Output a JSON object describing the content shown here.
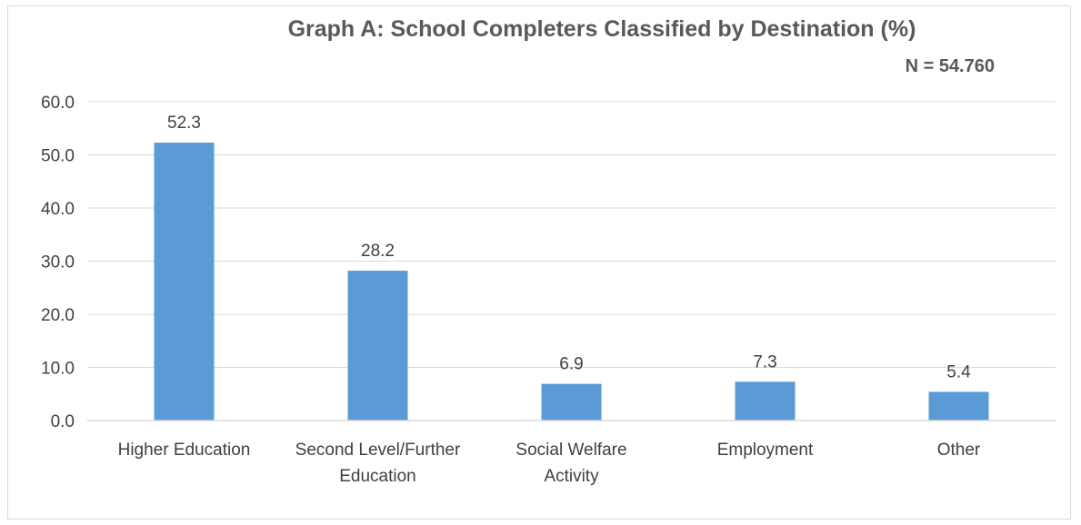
{
  "chart_data": {
    "type": "bar",
    "title": "Graph A: School Completers Classified by Destination  (%)",
    "subtitle": "N = 54.760",
    "categories": [
      [
        "Higher Education"
      ],
      [
        "Second Level/Further",
        "Education"
      ],
      [
        "Social Welfare",
        "Activity"
      ],
      [
        "Employment"
      ],
      [
        "Other"
      ]
    ],
    "values": [
      52.3,
      28.2,
      6.9,
      7.3,
      5.4
    ],
    "value_labels": [
      "52.3",
      "28.2",
      "6.9",
      "7.3",
      "5.4"
    ],
    "yticks": [
      0,
      10,
      20,
      30,
      40,
      50,
      60
    ],
    "ytick_labels": [
      "0.0",
      "10.0",
      "20.0",
      "30.0",
      "40.0",
      "50.0",
      "60.0"
    ],
    "ylim": [
      0,
      60
    ],
    "xlabel": "",
    "ylabel": "",
    "grid": true,
    "legend": "none",
    "bar_color": "#5b9bd5",
    "grid_color": "#d9d9d9",
    "text_color": "#404040",
    "title_color": "#595959"
  }
}
